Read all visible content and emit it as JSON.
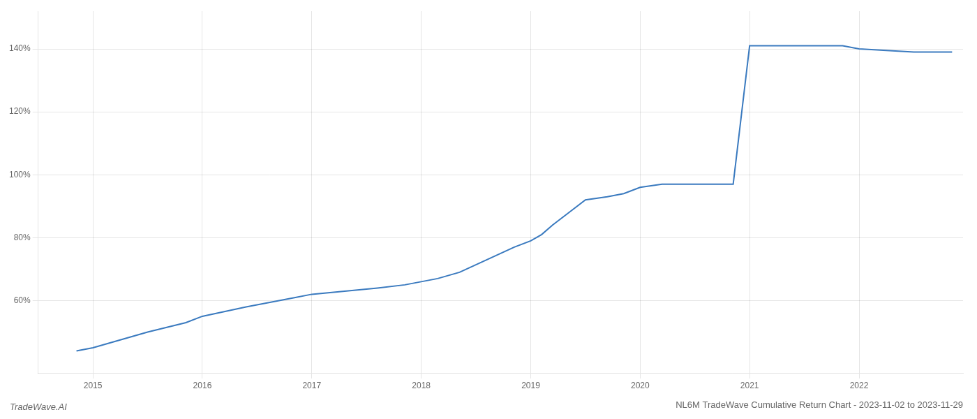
{
  "chart_data": {
    "type": "line",
    "title": "NL6M TradeWave Cumulative Return Chart - 2023-11-02 to 2023-11-29",
    "annotations": [
      "TradeWave.AI"
    ],
    "x": [
      2014.85,
      2015.0,
      2015.2,
      2015.5,
      2015.85,
      2016.0,
      2016.4,
      2016.85,
      2017.0,
      2017.3,
      2017.6,
      2017.85,
      2018.0,
      2018.15,
      2018.35,
      2018.6,
      2018.85,
      2019.0,
      2019.1,
      2019.2,
      2019.35,
      2019.5,
      2019.7,
      2019.85,
      2020.0,
      2020.2,
      2020.5,
      2020.85,
      2021.0,
      2021.5,
      2021.85,
      2022.0,
      2022.5,
      2022.85
    ],
    "values": [
      44,
      45,
      47,
      50,
      53,
      55,
      58,
      61,
      62,
      63,
      64,
      65,
      66,
      67,
      69,
      73,
      77,
      79,
      81,
      84,
      88,
      92,
      93,
      94,
      96,
      97,
      97,
      97,
      141,
      141,
      141,
      140,
      139,
      139
    ],
    "color": "#3a7abf",
    "xlim": [
      2014.5,
      2022.95
    ],
    "ylim": [
      37,
      152
    ],
    "xticks": [
      2015,
      2016,
      2017,
      2018,
      2019,
      2020,
      2021,
      2022
    ],
    "yticks": [
      {
        "value": 60,
        "label": "60%"
      },
      {
        "value": 80,
        "label": "80%"
      },
      {
        "value": 100,
        "label": "100%"
      },
      {
        "value": 120,
        "label": "120%"
      },
      {
        "value": 140,
        "label": "140%"
      }
    ],
    "grid": true
  }
}
